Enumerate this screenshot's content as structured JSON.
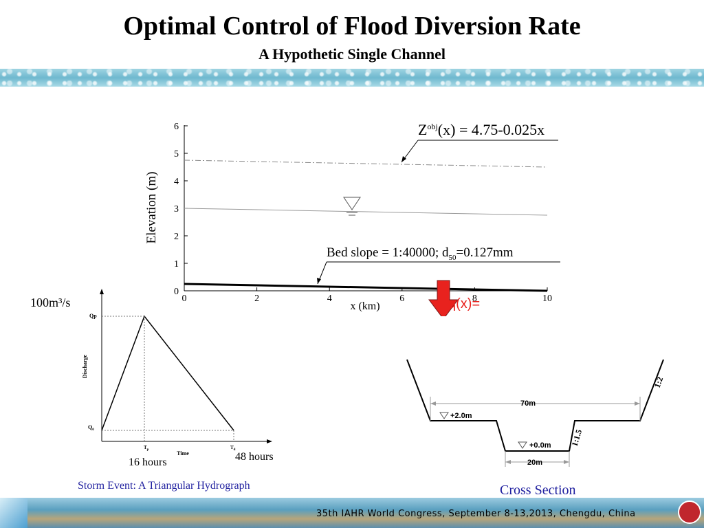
{
  "slide": {
    "title": "Optimal Control of Flood Diversion Rate",
    "subtitle": "A Hypothetic Single Channel",
    "footer": "35th IAHR World Congress, September 8-13,2013, Chengdu, China"
  },
  "elevation_plot": {
    "ylabel": "Elevation (m)",
    "xlabel": "x (km)",
    "y_ticks": [
      "0",
      "1",
      "2",
      "3",
      "4",
      "5",
      "6"
    ],
    "x_ticks": [
      "0",
      "2",
      "4",
      "6",
      "8",
      "10"
    ],
    "zobj_main": "Z",
    "zobj_sup": "obj",
    "zobj_rest": "(x) = 4.75-0.025x",
    "bed_main": "Bed slope = 1:40000; d",
    "bed_sub": "50",
    "bed_rest": "=0.127mm",
    "q_label": "q(x)="
  },
  "chart_data": {
    "type": "line",
    "xlabel": "x (km)",
    "ylabel": "Elevation (m)",
    "xlim": [
      0,
      10
    ],
    "ylim": [
      0,
      6
    ],
    "series": [
      {
        "x": [
          0,
          10
        ],
        "y": [
          4.75,
          4.5
        ]
      },
      {
        "x": [
          0,
          10
        ],
        "y": [
          3.0,
          2.75
        ]
      },
      {
        "x": [
          0,
          10
        ],
        "y": [
          0.25,
          0.0
        ]
      }
    ]
  },
  "hydrograph": {
    "unit_label": "100m³/s",
    "qp": "Qp",
    "q0": "Q",
    "q0_sub": "0",
    "ylabel": "Discharge",
    "xlabel": "Time",
    "tp": "T",
    "tp_sub": "p",
    "td": "T",
    "td_sub": "d",
    "hours_16": "16 hours",
    "hours_48": "48 hours",
    "caption": "Storm Event: A Triangular Hydrograph"
  },
  "cross_section": {
    "width_top": "70m",
    "width_bottom": "20m",
    "level_upper": "+2.0m",
    "level_lower": "+0.0m",
    "slope_upper": "1:2",
    "slope_lower": "1:1.5",
    "caption": "Cross Section"
  }
}
